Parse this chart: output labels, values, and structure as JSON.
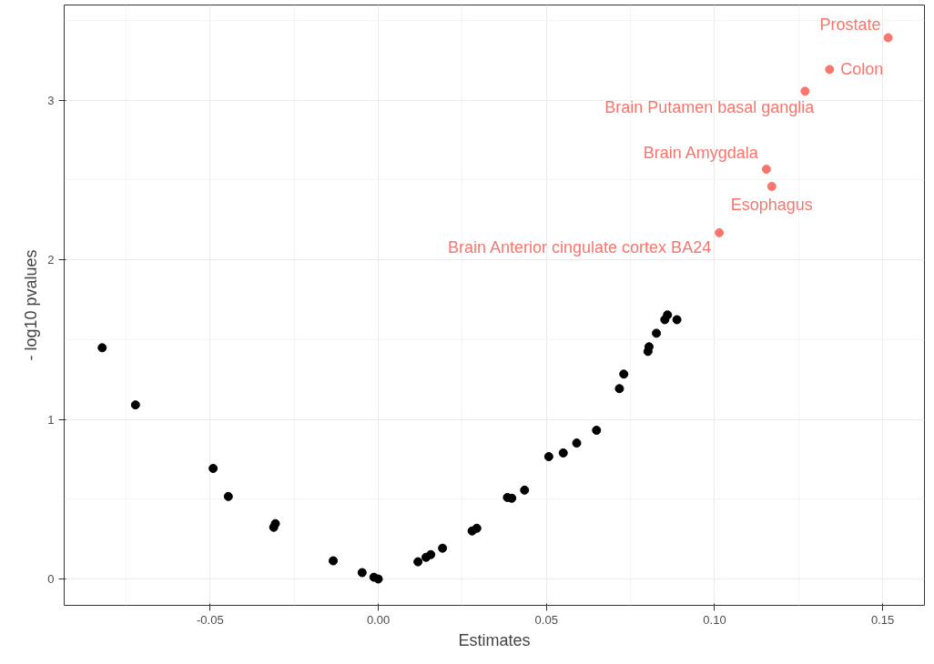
{
  "chart_data": {
    "type": "scatter",
    "xlabel": "Estimates",
    "ylabel": "- log10 pvalues",
    "marker": "circle",
    "grid": true,
    "xlim": [
      -0.0934,
      0.1624
    ],
    "ylim": [
      -0.165,
      3.597
    ],
    "xticks": [
      {
        "value": -0.05,
        "label": "-0.05"
      },
      {
        "value": 0,
        "label": "0.00"
      },
      {
        "value": 0.05,
        "label": "0.05"
      },
      {
        "value": 0.1,
        "label": "0.10"
      },
      {
        "value": 0.15,
        "label": "0.15"
      }
    ],
    "yticks": [
      0,
      1,
      2,
      3
    ],
    "series": [
      {
        "color": "#000000",
        "x": [
          -0.0821,
          -0.0722,
          -0.0491,
          -0.0446,
          -0.0311,
          -0.0306,
          -0.0134,
          -0.0048,
          -0.0013,
          0.0,
          0.0118,
          0.0142,
          0.0156,
          0.0191,
          0.0279,
          0.0293,
          0.0384,
          0.0397,
          0.0435,
          0.0507,
          0.055,
          0.059,
          0.0649,
          0.0717,
          0.073,
          0.0802,
          0.0805,
          0.0827,
          0.0852,
          0.086,
          0.0888
        ],
        "values": [
          1.449,
          1.091,
          0.693,
          0.517,
          0.324,
          0.347,
          0.114,
          0.04,
          0.011,
          0.0,
          0.108,
          0.136,
          0.153,
          0.193,
          0.301,
          0.318,
          0.511,
          0.506,
          0.557,
          0.767,
          0.79,
          0.852,
          0.932,
          1.193,
          1.284,
          1.426,
          1.455,
          1.54,
          1.625,
          1.655,
          1.625
        ]
      },
      {
        "color": "#f8766d",
        "x": [
          0.1516,
          0.1342,
          0.1269,
          0.1154,
          0.117,
          0.1014
        ],
        "values": [
          3.392,
          3.193,
          3.057,
          2.568,
          2.46,
          2.17
        ]
      }
    ],
    "annotations": [
      {
        "text": "Prostate",
        "x": 0.1516,
        "y": 3.392
      },
      {
        "text": "Colon",
        "x": 0.1342,
        "y": 3.193
      },
      {
        "text": "Brain Putamen basal ganglia",
        "x": 0.1269,
        "y": 3.057
      },
      {
        "text": "Brain Amygdala",
        "x": 0.1154,
        "y": 2.568
      },
      {
        "text": "Esophagus",
        "x": 0.117,
        "y": 2.46
      },
      {
        "text": "Brain Anterior cingulate cortex BA24",
        "x": 0.1014,
        "y": 2.17
      }
    ]
  }
}
